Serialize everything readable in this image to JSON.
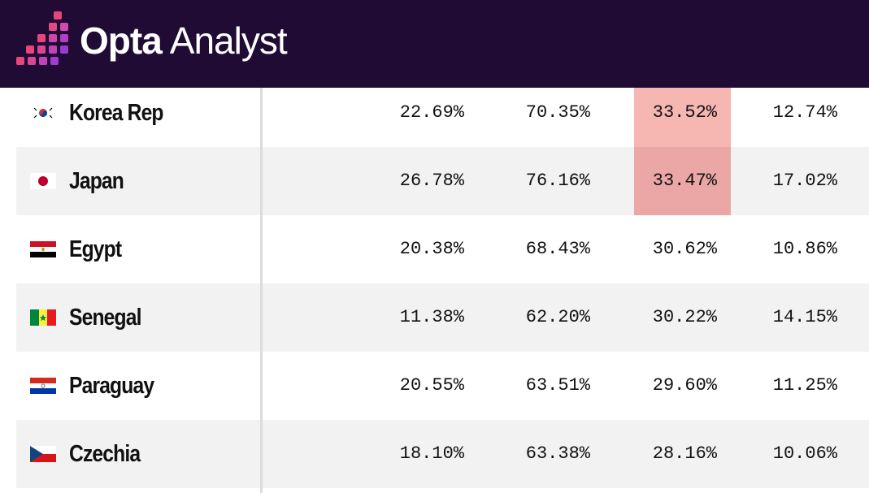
{
  "header": {
    "brand_bold": "Opta",
    "brand_light": "Analyst"
  },
  "table": {
    "rows": [
      [
        "Korea Rep",
        "22.69%",
        "70.35%",
        "33.52%",
        "12.74%"
      ],
      [
        "Japan",
        "26.78%",
        "76.16%",
        "33.47%",
        "17.02%"
      ],
      [
        "Egypt",
        "20.38%",
        "68.43%",
        "30.62%",
        "10.86%"
      ],
      [
        "Senegal",
        "11.38%",
        "62.20%",
        "30.22%",
        "14.15%"
      ],
      [
        "Paraguay",
        "20.55%",
        "63.51%",
        "29.60%",
        "11.25%"
      ],
      [
        "Czechia",
        "18.10%",
        "63.38%",
        "28.16%",
        "10.06%"
      ]
    ]
  }
}
